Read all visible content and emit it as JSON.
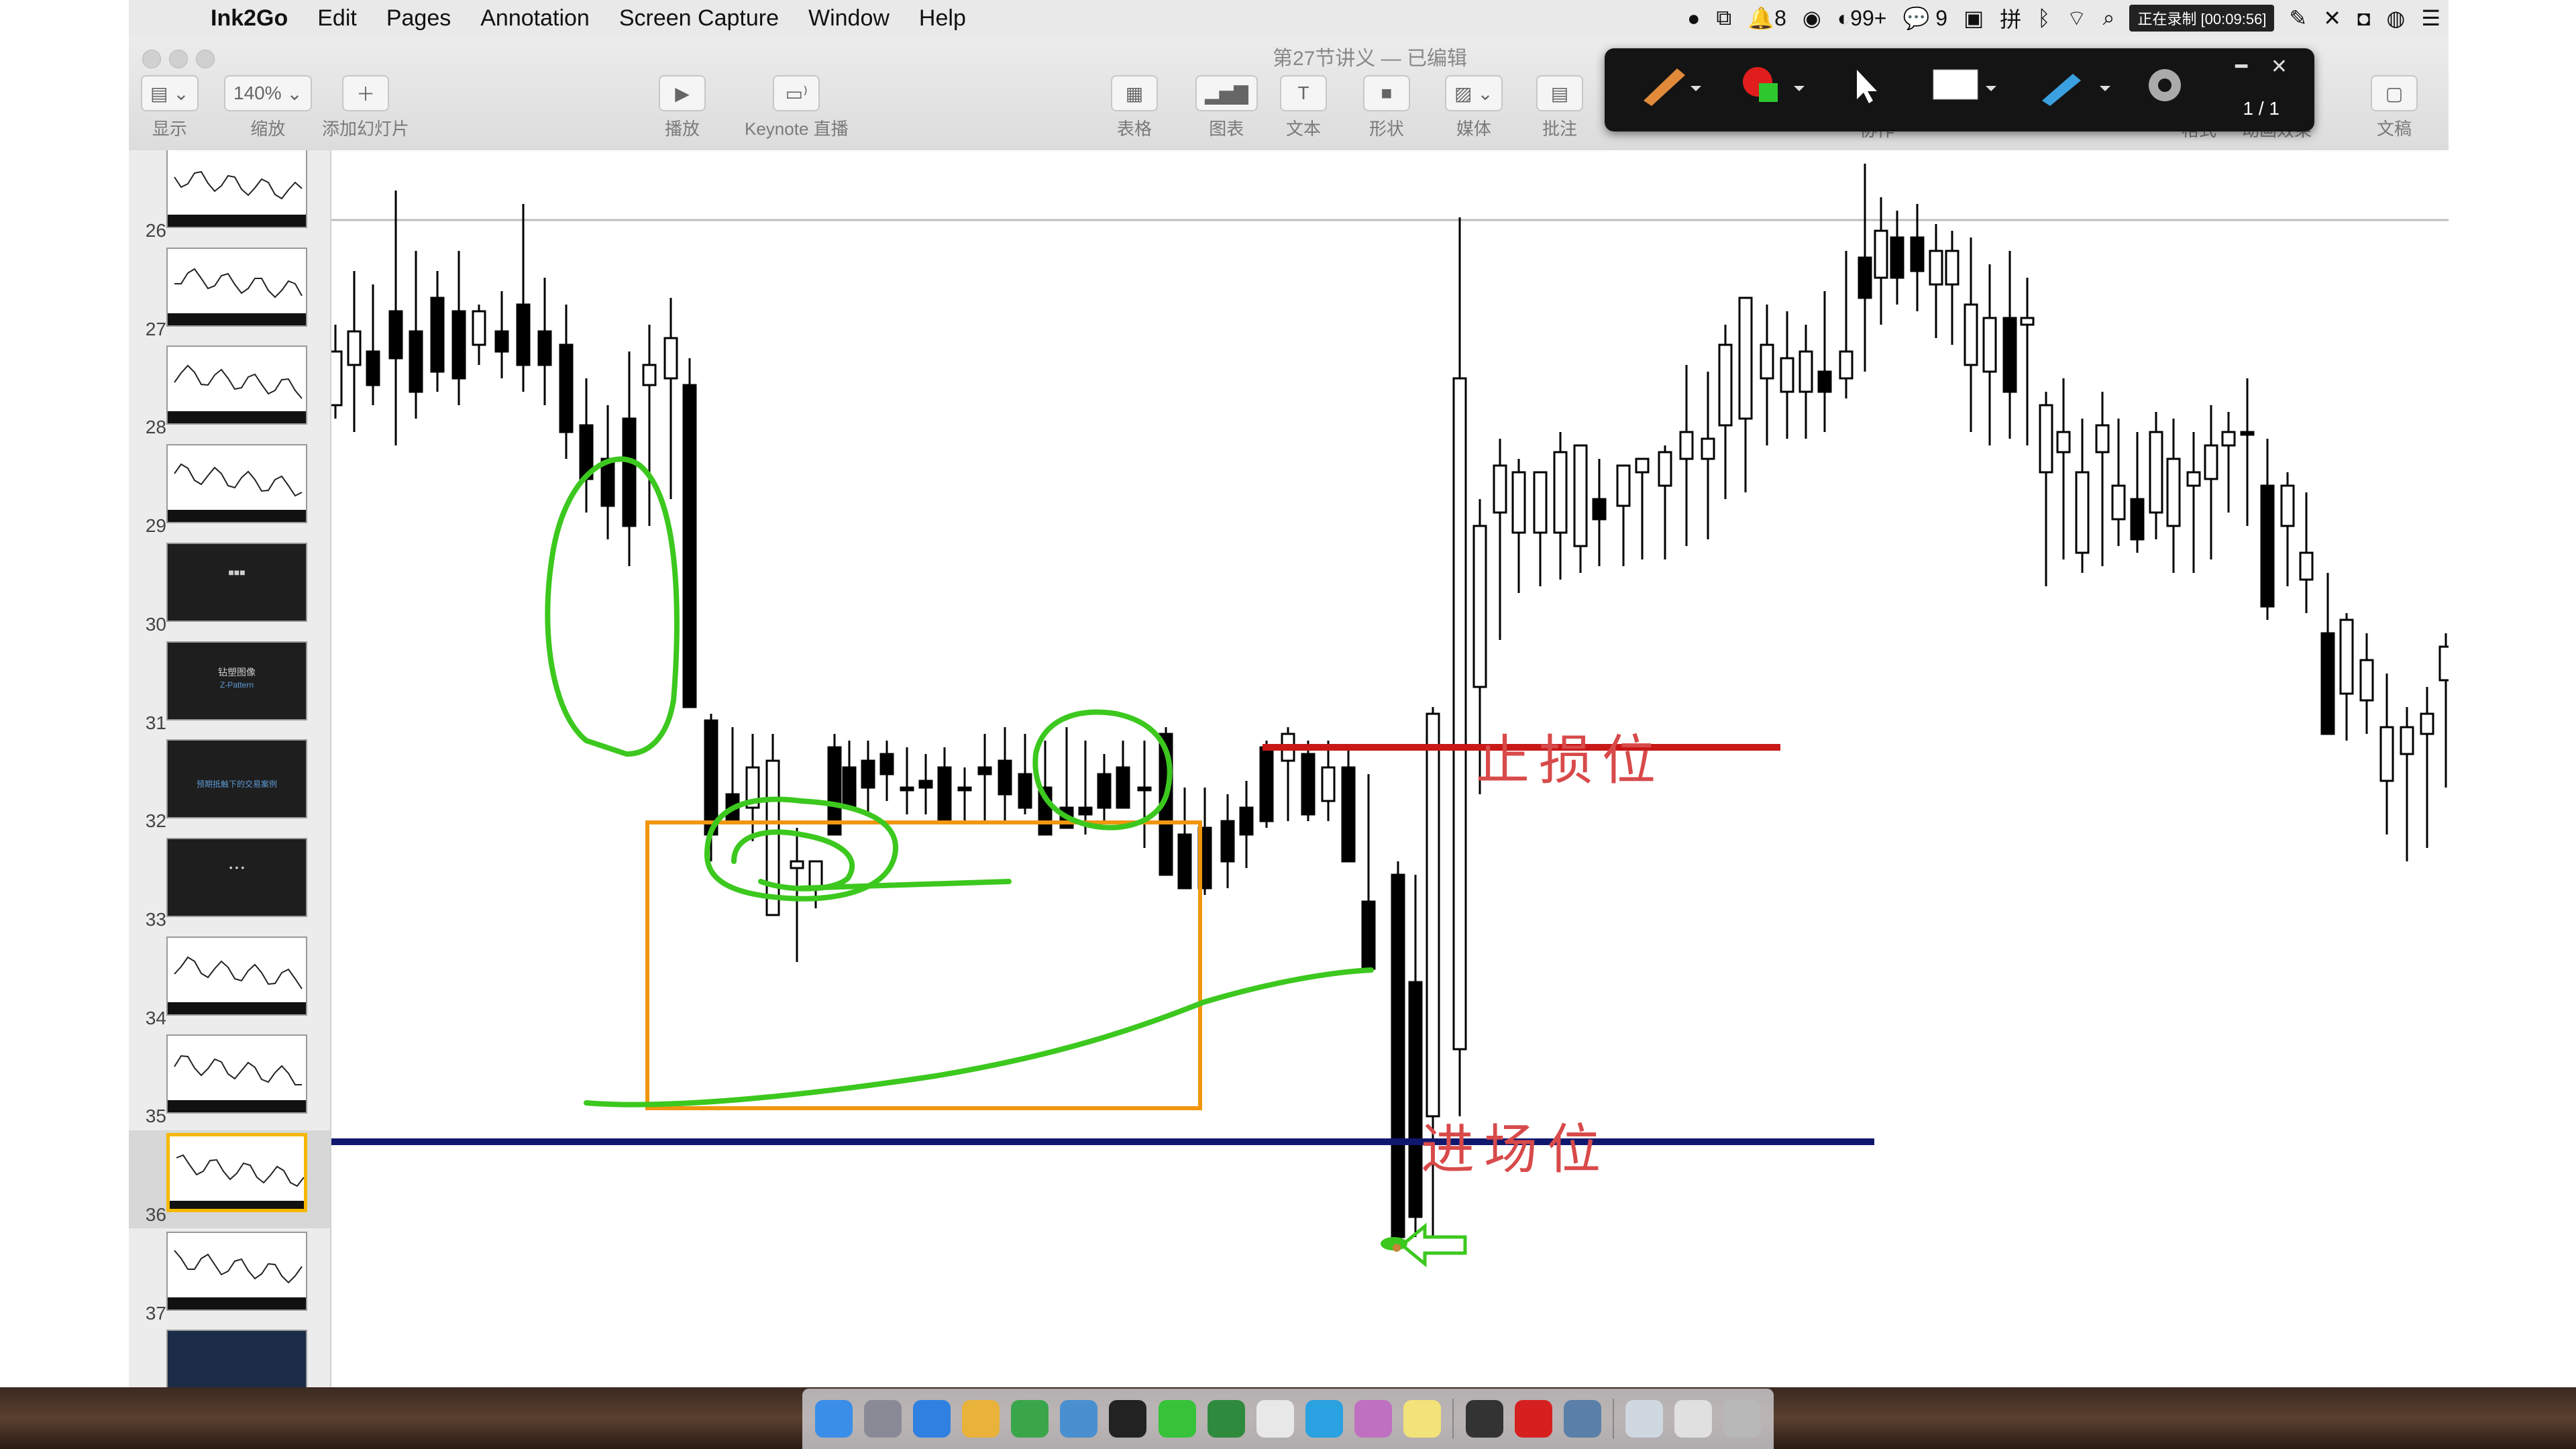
{
  "menubar": {
    "app_name": "Ink2Go",
    "items": [
      "Edit",
      "Pages",
      "Annotation",
      "Screen Capture",
      "Window",
      "Help"
    ],
    "status": {
      "notifications": "8",
      "badge": "99+",
      "wechat": "9",
      "recording": "正在录制 [00:09:56]"
    }
  },
  "window": {
    "title": "第27节讲义 — 已编辑",
    "toolbar": [
      {
        "label": "显示",
        "icon": "view-icon"
      },
      {
        "label": "缩放",
        "value": "140%",
        "icon": "zoom-icon"
      },
      {
        "label": "添加幻灯片",
        "icon": "add-icon"
      },
      {
        "label": "播放",
        "icon": "play-icon"
      },
      {
        "label": "Keynote 直播",
        "icon": "keynote-live-icon"
      },
      {
        "label": "表格",
        "icon": "table-icon"
      },
      {
        "label": "图表",
        "icon": "chart-icon"
      },
      {
        "label": "文本",
        "icon": "text-icon"
      },
      {
        "label": "形状",
        "icon": "shape-icon"
      },
      {
        "label": "媒体",
        "icon": "media-icon"
      },
      {
        "label": "批注",
        "icon": "comment-icon"
      },
      {
        "label": "协作",
        "icon": "collaborate-icon"
      },
      {
        "label": "格式",
        "icon": "format-icon"
      },
      {
        "label": "动画效果",
        "icon": "animate-icon"
      },
      {
        "label": "文稿",
        "icon": "document-icon"
      }
    ]
  },
  "annotation_toolbar": {
    "page_indicator": "1 / 1",
    "tools": [
      "pen-icon",
      "color-picker-icon",
      "pointer-icon",
      "whiteboard-icon",
      "marker-icon",
      "settings-icon"
    ],
    "colors": {
      "pen": "#e08a3a",
      "red": "#e01e1e",
      "green": "#2ec72e"
    }
  },
  "sidebar": {
    "slides": [
      {
        "number": "26",
        "style": "light"
      },
      {
        "number": "27",
        "style": "light"
      },
      {
        "number": "28",
        "style": "light"
      },
      {
        "number": "29",
        "style": "light"
      },
      {
        "number": "30",
        "style": "dark",
        "text": "■■■"
      },
      {
        "number": "31",
        "style": "dark",
        "text": "钻塑图像",
        "sub": "Z-Pattern"
      },
      {
        "number": "32",
        "style": "dark",
        "sub": "预期抵触下的交易案例"
      },
      {
        "number": "33",
        "style": "dark",
        "text": "• • •"
      },
      {
        "number": "34",
        "style": "light"
      },
      {
        "number": "35",
        "style": "light"
      },
      {
        "number": "36",
        "style": "light",
        "selected": true
      },
      {
        "number": "37",
        "style": "light"
      },
      {
        "number": "",
        "style": "blue"
      }
    ]
  },
  "slide": {
    "stop_loss_label": "止损位",
    "entry_label": "进场位",
    "colors": {
      "stop_line": "#c81818",
      "entry_line": "#10186e",
      "box": "#f0960f",
      "annotation": "#3cc81e",
      "label": "#d84a4a",
      "bull_body": "#ffffff",
      "bear_body": "#000000",
      "wick": "#000000"
    }
  },
  "dock": {
    "apps": [
      "finder-icon",
      "launchpad-icon",
      "safari-icon",
      "keynote-icon",
      "numbers-icon",
      "preview-icon",
      "qq-icon",
      "wechat-icon",
      "evernote-icon",
      "chrome-icon",
      "telegram-icon",
      "photos-icon",
      "notes-icon",
      "ink2go-icon",
      "xmind-icon",
      "network-icon",
      "finder-window-icon",
      "mail-icon",
      "trash-icon"
    ]
  }
}
